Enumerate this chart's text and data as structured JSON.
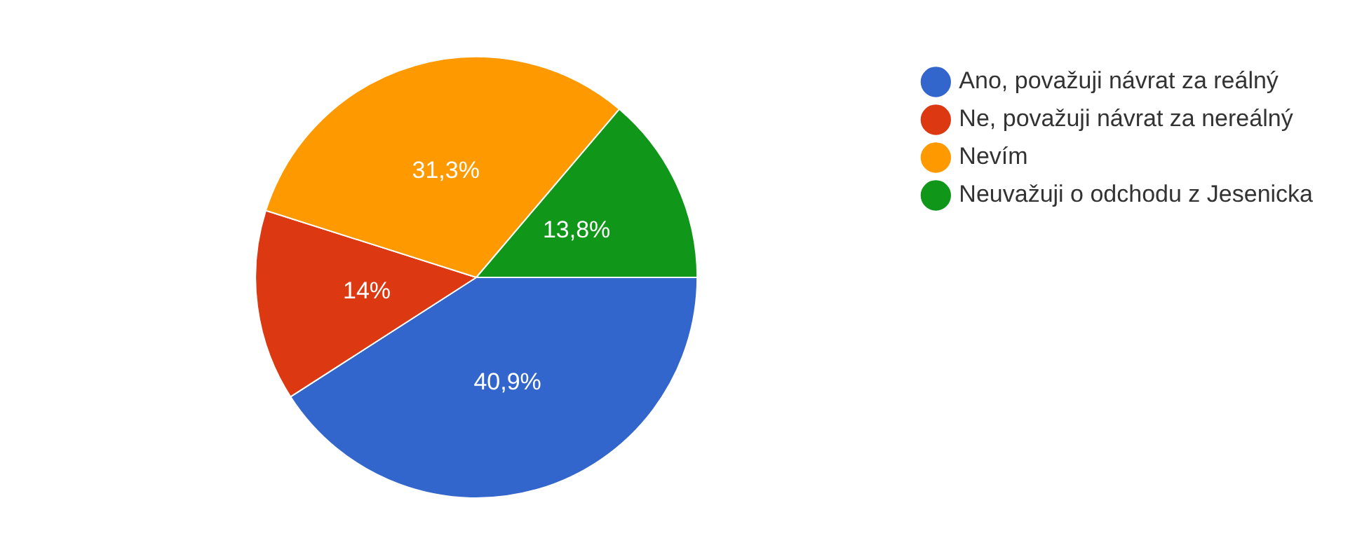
{
  "chart_data": {
    "type": "pie",
    "categories": [
      "Ano, považuji návrat za reálný",
      "Ne, považuji návrat za nereálný",
      "Nevím",
      "Neuvažuji o odchodu z Jesenicka"
    ],
    "values": [
      40.9,
      14,
      31.3,
      13.8
    ],
    "colors": [
      "#3366cc",
      "#dc3912",
      "#ff9900",
      "#109618"
    ],
    "value_labels": [
      "40,9%",
      "14%",
      "31,3%",
      "13,8%"
    ],
    "legend": "top right"
  }
}
